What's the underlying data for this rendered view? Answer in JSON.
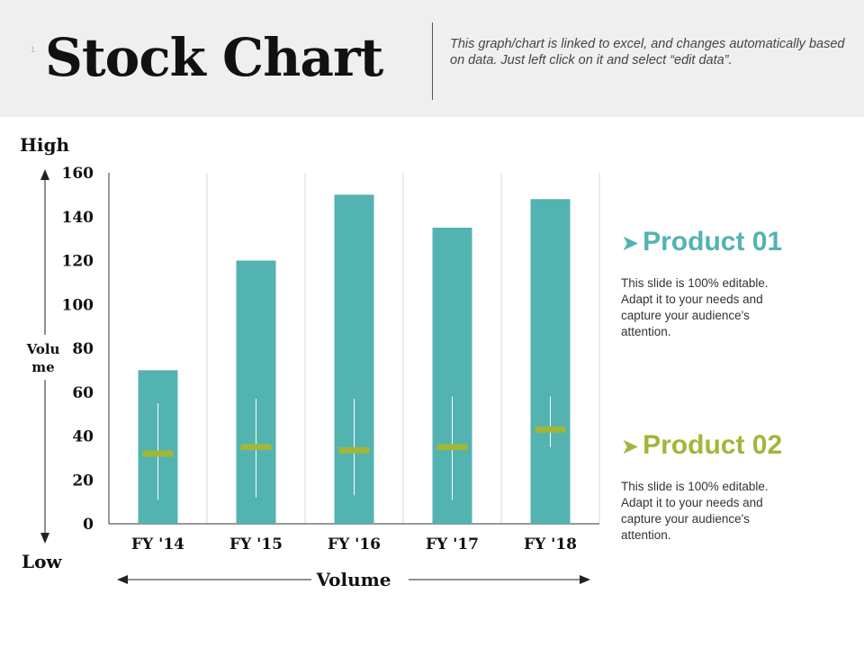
{
  "header": {
    "slide_number": "1",
    "title": "Stock Chart",
    "note": "This graph/chart is linked to excel, and changes automatically based on data. Just left click on it and select “edit data”."
  },
  "chart_data": {
    "type": "bar",
    "categories": [
      "FY '14",
      "FY '15",
      "FY '16",
      "FY '17",
      "FY '18"
    ],
    "series": [
      {
        "kind": "volume-bar",
        "values": [
          70,
          120,
          150,
          135,
          148
        ]
      },
      {
        "kind": "high",
        "values": [
          55,
          57,
          57,
          58,
          58
        ]
      },
      {
        "kind": "low",
        "values": [
          11,
          12,
          13,
          11,
          35
        ]
      },
      {
        "kind": "close",
        "values": [
          32,
          35,
          33.5,
          35,
          43
        ]
      }
    ],
    "ylim": [
      0,
      160
    ],
    "yticks": [
      "0",
      "20",
      "40",
      "60",
      "80",
      "100",
      "120",
      "140",
      "160"
    ],
    "left_labels": {
      "top": "High",
      "middle_line1": "Volu",
      "middle_line2": "me",
      "bottom": "Low"
    },
    "xlabel": "Volume",
    "grid": true
  },
  "products": [
    {
      "title": "Product 01",
      "description": "This slide is 100% editable. Adapt it to your needs and capture your audience's attention."
    },
    {
      "title": "Product 02",
      "description": "This slide is 100% editable. Adapt it to your needs and capture your audience's attention."
    }
  ],
  "colors": {
    "bar": "#52b3b1",
    "close_marker": "#a2b63a",
    "product01": "#52b3b1",
    "product02": "#a2b63a",
    "header_bg": "#efefef"
  },
  "icons": {
    "product_bullet": "arrowhead-icon"
  }
}
